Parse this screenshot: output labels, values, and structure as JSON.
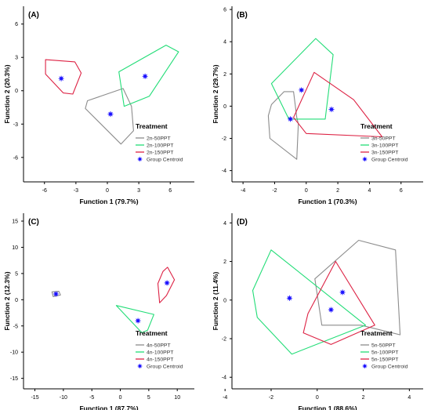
{
  "chart_data": [
    {
      "type": "scatter",
      "panel_label": "(A)",
      "xlabel": "Function 1 (79.7%)",
      "ylabel": "Function 2 (20.3%)",
      "xlim": [
        -8,
        8.3
      ],
      "ylim": [
        -8.2,
        7.6
      ],
      "xticks": [
        -6,
        -3,
        0,
        3,
        6
      ],
      "yticks": [
        6,
        3,
        0,
        -3,
        -6
      ],
      "legend_title": "Treatment",
      "series": [
        {
          "name": "2n-50PPT",
          "color": "#8c8c8c",
          "hull": [
            [
              -1.9,
              -0.9
            ],
            [
              1.5,
              0.2
            ],
            [
              2.3,
              -1.4
            ],
            [
              2.5,
              -3.6
            ],
            [
              1.3,
              -4.8
            ],
            [
              -2.1,
              -1.6
            ]
          ]
        },
        {
          "name": "2n-100PPT",
          "color": "#22dd77",
          "hull": [
            [
              1.1,
              1.7
            ],
            [
              5.6,
              4.1
            ],
            [
              6.8,
              3.5
            ],
            [
              4.0,
              -0.5
            ],
            [
              1.6,
              -1.4
            ]
          ]
        },
        {
          "name": "2n-150PPT",
          "color": "#dd2244",
          "hull": [
            [
              -5.9,
              2.8
            ],
            [
              -3.1,
              2.6
            ],
            [
              -2.5,
              1.6
            ],
            [
              -3.3,
              -0.3
            ],
            [
              -4.2,
              -0.2
            ],
            [
              -5.9,
              1.5
            ]
          ]
        }
      ],
      "centroids": [
        [
          0.3,
          -2.1
        ],
        [
          3.6,
          1.3
        ],
        [
          -4.4,
          1.1
        ]
      ],
      "centroid_label": "Group Centroid"
    },
    {
      "type": "scatter",
      "panel_label": "(B)",
      "xlabel": "Function 1 (70.3%)",
      "ylabel": "Function 2 (29.7%)",
      "xlim": [
        -4.7,
        7.4
      ],
      "ylim": [
        -4.7,
        6.2
      ],
      "xticks": [
        -4,
        -2,
        0,
        2,
        4,
        6
      ],
      "yticks": [
        6,
        4,
        2,
        0,
        -2,
        -4
      ],
      "legend_title": "Treatment",
      "series": [
        {
          "name": "3n-50PPT",
          "color": "#8c8c8c",
          "hull": [
            [
              -2.2,
              0.1
            ],
            [
              -1.4,
              0.9
            ],
            [
              -0.8,
              0.9
            ],
            [
              -0.6,
              -0.7
            ],
            [
              -0.5,
              -1.1
            ],
            [
              -0.6,
              -3.3
            ],
            [
              -2.3,
              -2.0
            ],
            [
              -2.4,
              -0.6
            ]
          ]
        },
        {
          "name": "3n-100PPT",
          "color": "#22dd77",
          "hull": [
            [
              -2.2,
              1.4
            ],
            [
              -0.3,
              3.3
            ],
            [
              0.6,
              4.2
            ],
            [
              1.7,
              3.2
            ],
            [
              1.2,
              -0.8
            ],
            [
              -1.1,
              -0.8
            ]
          ]
        },
        {
          "name": "3n-150PPT",
          "color": "#dd2244",
          "hull": [
            [
              -0.8,
              -0.7
            ],
            [
              0.5,
              2.1
            ],
            [
              3.0,
              0.4
            ],
            [
              4.8,
              -1.9
            ],
            [
              0.0,
              -1.7
            ]
          ]
        }
      ],
      "centroids": [
        [
          -1.0,
          -0.8
        ],
        [
          -0.3,
          1.0
        ],
        [
          1.6,
          -0.2
        ]
      ],
      "centroid_label": "Group Centroid"
    },
    {
      "type": "scatter",
      "panel_label": "(C)",
      "xlabel": "Function 1 (87.7%)",
      "ylabel": "Function 2 (12.3%)",
      "xlim": [
        -17,
        13
      ],
      "ylim": [
        -17,
        16.5
      ],
      "xticks": [
        -15,
        -10,
        -5,
        0,
        5,
        10
      ],
      "yticks": [
        15,
        10,
        5,
        0,
        -5,
        -10,
        -15
      ],
      "legend_title": "Treatment",
      "series": [
        {
          "name": "4n-50PPT",
          "color": "#8c8c8c",
          "hull": [
            [
              -12,
              1.5
            ],
            [
              -10.8,
              1.6
            ],
            [
              -10.5,
              0.9
            ],
            [
              -11.8,
              0.6
            ]
          ]
        },
        {
          "name": "4n-100PPT",
          "color": "#22dd77",
          "hull": [
            [
              -0.7,
              -1.1
            ],
            [
              5.9,
              -2.8
            ],
            [
              4.8,
              -5.8
            ],
            [
              3.8,
              -6.3
            ]
          ]
        },
        {
          "name": "4n-150PPT",
          "color": "#dd2244",
          "hull": [
            [
              6.6,
              3.1
            ],
            [
              7.5,
              5.4
            ],
            [
              8.3,
              6.2
            ],
            [
              9.5,
              3.8
            ],
            [
              8.1,
              0.8
            ],
            [
              6.9,
              -0.6
            ]
          ]
        }
      ],
      "centroids": [
        [
          -11.3,
          1.1
        ],
        [
          3.1,
          -4.0
        ],
        [
          8.2,
          3.2
        ]
      ],
      "centroid_label": "Group Centroid"
    },
    {
      "type": "scatter",
      "panel_label": "(D)",
      "xlabel": "Function 1 (88.6%)",
      "ylabel": "Function 2 (11.4%)",
      "xlim": [
        -3.7,
        4.6
      ],
      "ylim": [
        -4.6,
        4.5
      ],
      "xticks": [
        -4,
        -2,
        0,
        2,
        4
      ],
      "yticks": [
        4,
        2,
        0,
        -2,
        -4
      ],
      "legend_title": "Treatment",
      "series": [
        {
          "name": "5n-50PPT",
          "color": "#8c8c8c",
          "hull": [
            [
              -0.1,
              1.1
            ],
            [
              1.8,
              3.1
            ],
            [
              3.4,
              2.6
            ],
            [
              3.6,
              -1.8
            ],
            [
              1.9,
              -1.3
            ],
            [
              0.2,
              -1.3
            ]
          ]
        },
        {
          "name": "5n-100PPT",
          "color": "#22dd77",
          "hull": [
            [
              -2.8,
              0.5
            ],
            [
              -2.0,
              2.6
            ],
            [
              2.1,
              -1.3
            ],
            [
              -1.1,
              -2.8
            ],
            [
              -2.6,
              -0.9
            ]
          ]
        },
        {
          "name": "5n-150PPT",
          "color": "#dd2244",
          "hull": [
            [
              -0.4,
              -0.7
            ],
            [
              0.8,
              2.0
            ],
            [
              2.5,
              -1.3
            ],
            [
              0.6,
              -2.3
            ],
            [
              -0.6,
              -1.7
            ]
          ]
        }
      ],
      "centroids": [
        [
          1.1,
          0.4
        ],
        [
          -1.2,
          0.1
        ],
        [
          0.6,
          -0.5
        ]
      ],
      "centroid_label": "Group Centroid"
    }
  ]
}
